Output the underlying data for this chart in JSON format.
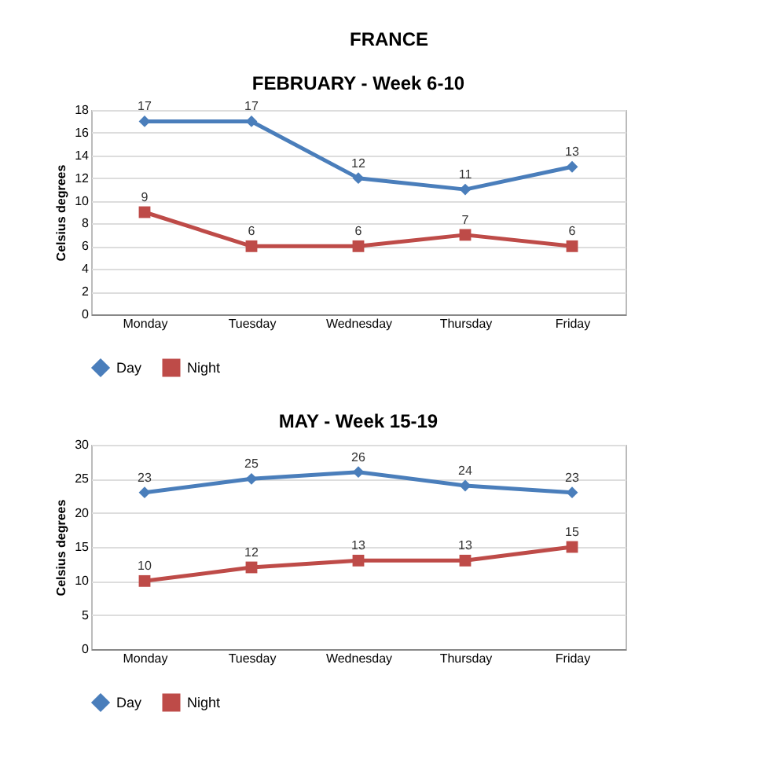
{
  "chart_data": [
    {
      "type": "line",
      "title": "FEBRUARY - Week 6-10",
      "annotations": [
        "FRANCE"
      ],
      "ylabel": "Celsius degrees",
      "categories": [
        "Monday",
        "Tuesday",
        "Wednesday",
        "Thursday",
        "Friday"
      ],
      "series": [
        {
          "name": "Day",
          "color": "#4a7ebb",
          "marker": "diamond",
          "values": [
            17,
            17,
            12,
            11,
            13
          ]
        },
        {
          "name": "Night",
          "color": "#be4b48",
          "marker": "square",
          "values": [
            9,
            6,
            6,
            7,
            6
          ]
        }
      ],
      "ylim": [
        0,
        18
      ],
      "yticks": [
        0,
        2,
        4,
        6,
        8,
        10,
        12,
        14,
        16,
        18
      ],
      "grid": "y",
      "legend": "bottom",
      "data_labels": true
    },
    {
      "type": "line",
      "title": "MAY - Week 15-19",
      "ylabel": "Celsius degrees",
      "categories": [
        "Monday",
        "Tuesday",
        "Wednesday",
        "Thursday",
        "Friday"
      ],
      "series": [
        {
          "name": "Day",
          "color": "#4a7ebb",
          "marker": "diamond",
          "values": [
            23,
            25,
            26,
            24,
            23
          ]
        },
        {
          "name": "Night",
          "color": "#be4b48",
          "marker": "square",
          "values": [
            10,
            12,
            13,
            13,
            15
          ]
        }
      ],
      "ylim": [
        0,
        30
      ],
      "yticks": [
        0,
        5,
        10,
        15,
        20,
        25,
        30
      ],
      "grid": "y",
      "legend": "bottom",
      "data_labels": true
    }
  ]
}
